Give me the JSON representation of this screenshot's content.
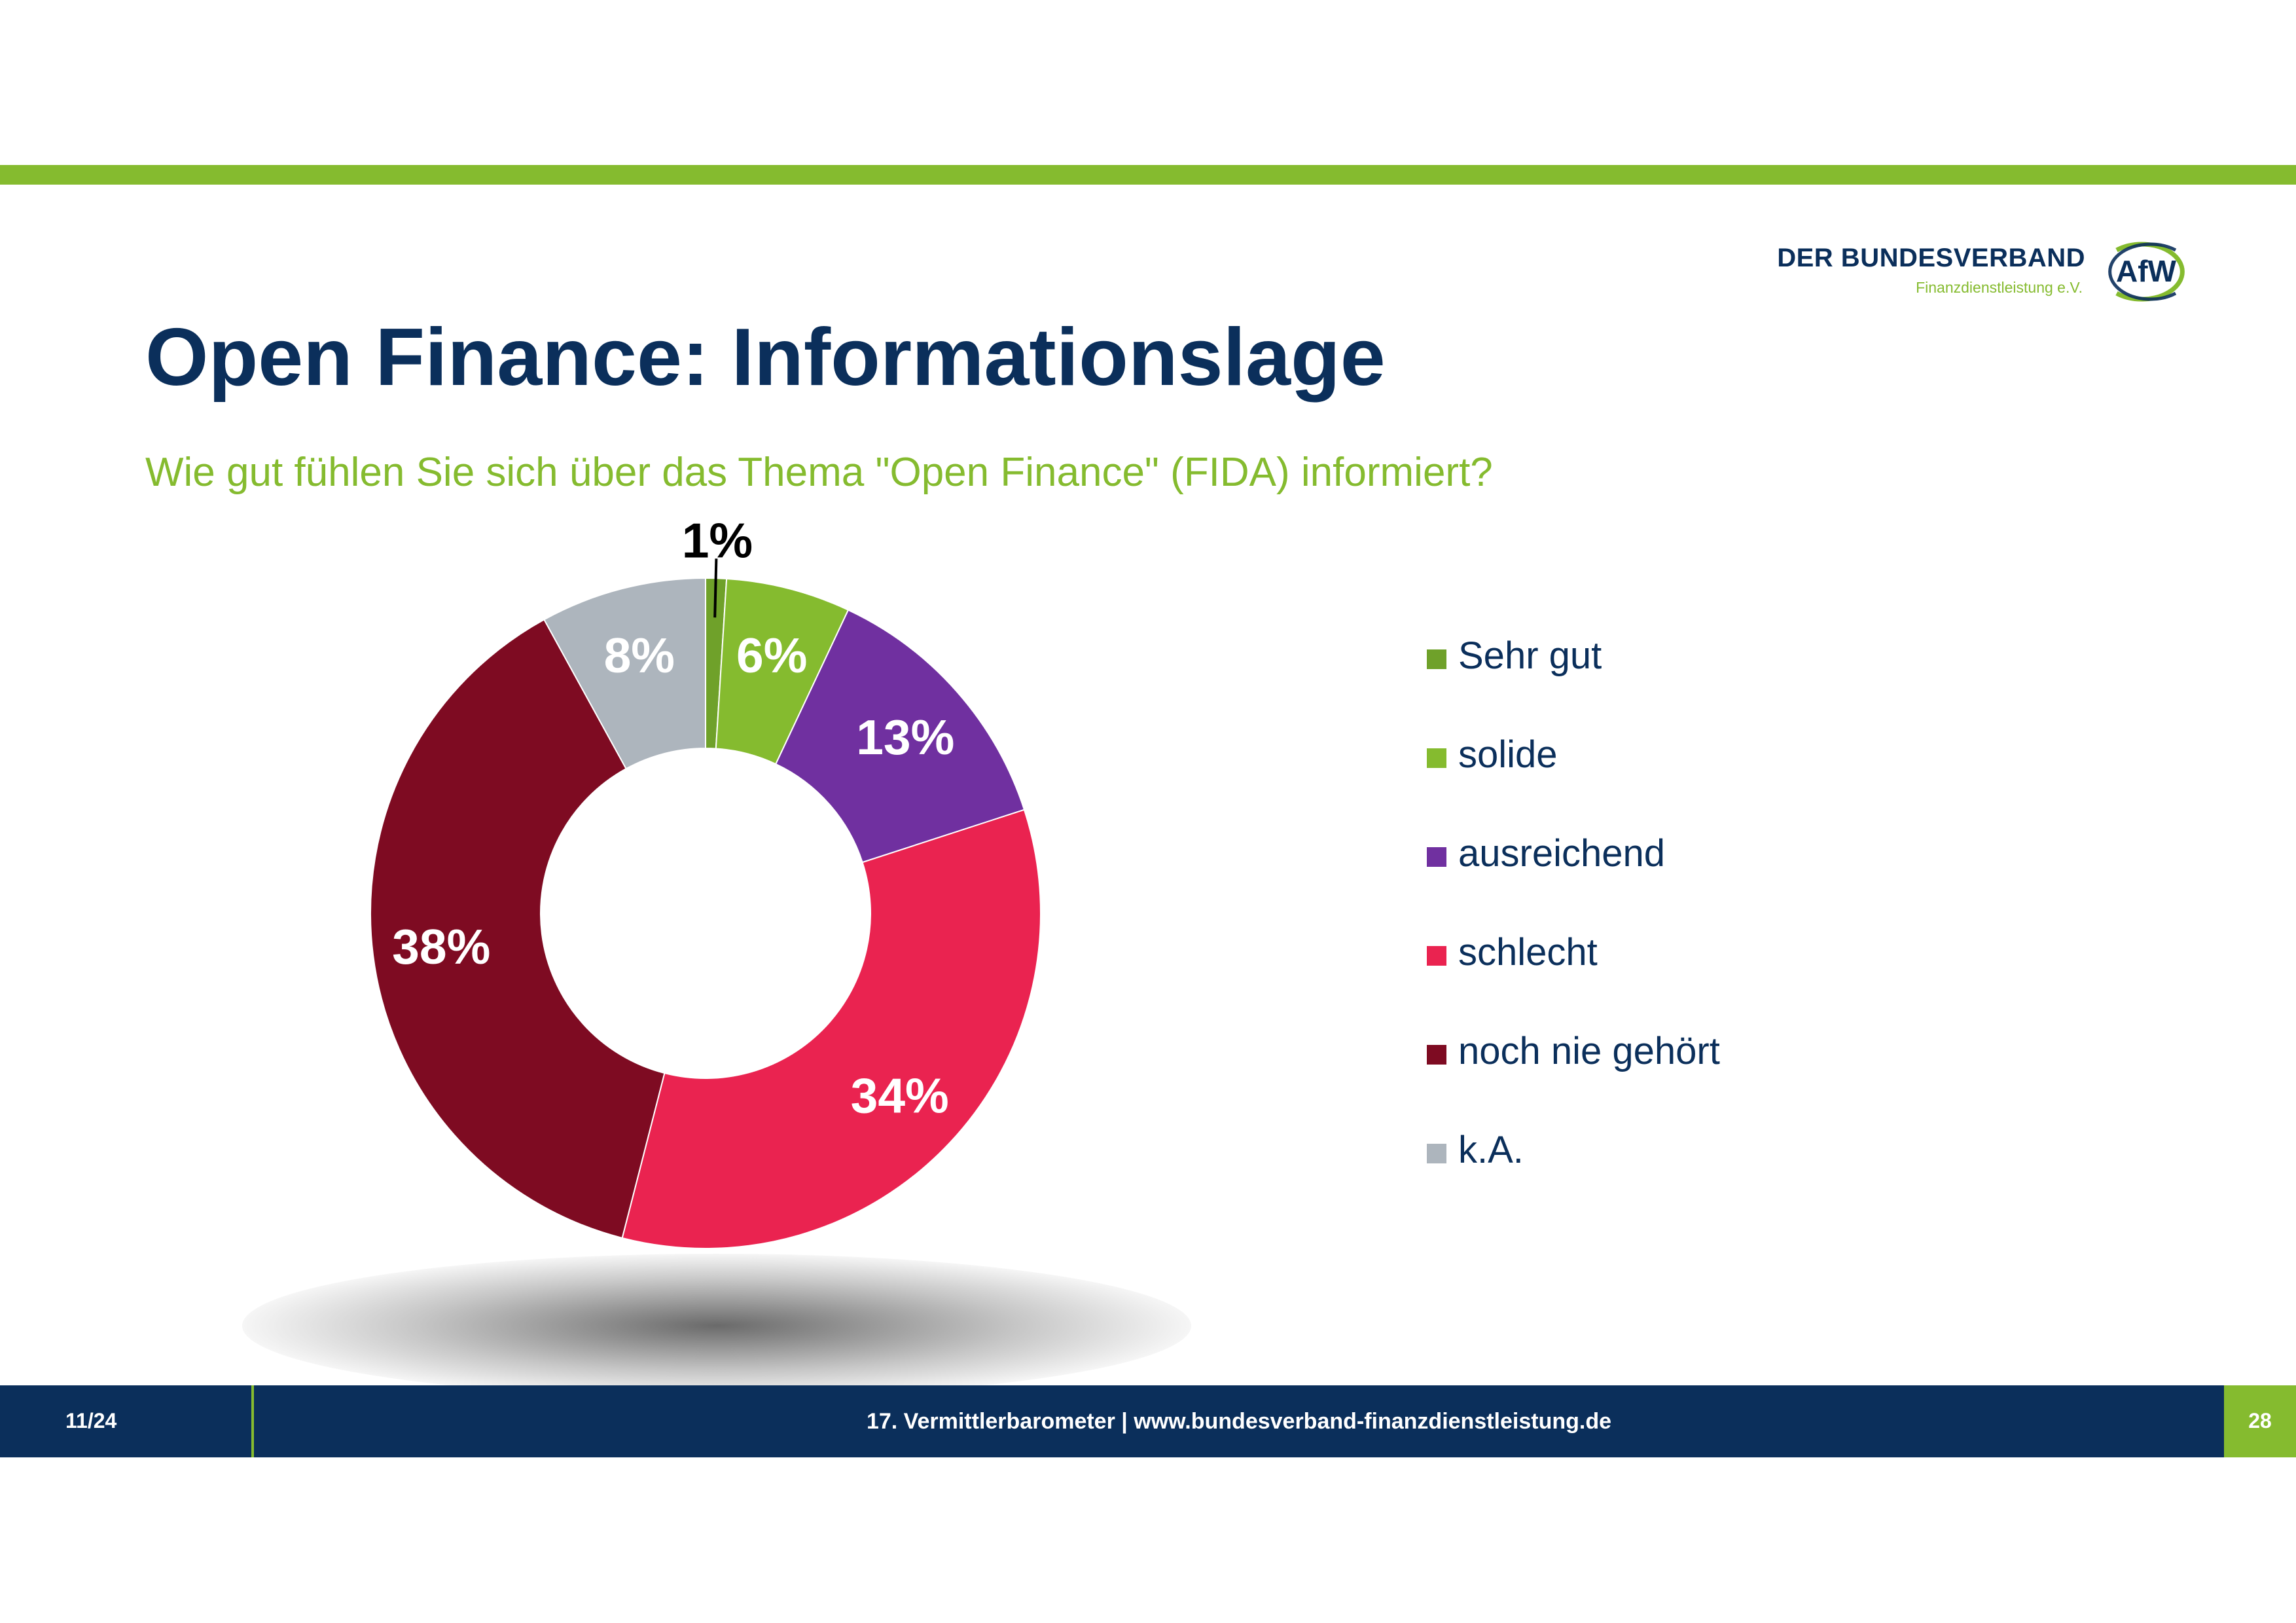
{
  "header": {
    "logo_name": "DER BUNDESVERBAND",
    "logo_sub": "Finanzdienstleistung e.V.",
    "logo_mark": "AfW",
    "brand_navy": "#0b2f5b",
    "brand_green": "#85bb2f"
  },
  "title": "Open Finance: Informationslage",
  "subtitle": "Wie gut fühlen Sie sich über das Thema \"Open Finance\" (FIDA) informiert?",
  "chart_data": {
    "type": "pie",
    "variant": "donut",
    "title": "Wie gut fühlen Sie sich über das Thema \"Open Finance\" (FIDA) informiert?",
    "unit": "%",
    "legend_position": "right",
    "categories": [
      "Sehr gut",
      "solide",
      "ausreichend",
      "schlecht",
      "noch nie gehört",
      "k.A."
    ],
    "values": [
      1,
      6,
      13,
      34,
      38,
      8
    ],
    "labels": [
      "1%",
      "6%",
      "13%",
      "34%",
      "38%",
      "8%"
    ],
    "colors": [
      "#6fa12a",
      "#85bb2f",
      "#7030a0",
      "#ea2350",
      "#7e0b22",
      "#adb5bd"
    ]
  },
  "footer": {
    "page_fraction": "11/24",
    "center_text": "17. Vermittlerbarometer | www.bundesverband-finanzdienstleistung.de",
    "page_number": "28"
  }
}
